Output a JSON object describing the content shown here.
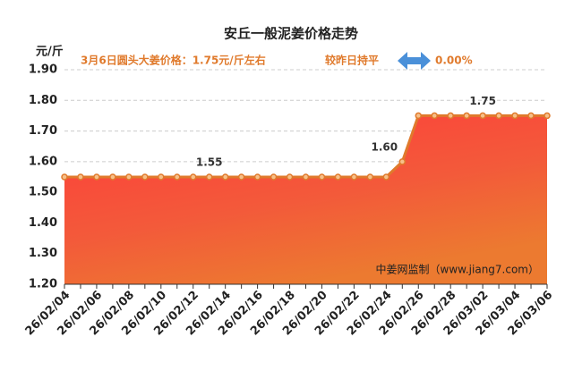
{
  "chart_data": {
    "type": "area",
    "title": "安丘一般泥姜价格走势",
    "y_label": "元/斤",
    "subtitle": "3月6日圆头大姜价格：1.75元/斤左右",
    "compare_text": "较昨日持平",
    "change": "0.00%",
    "watermark": "中姜网监制（www.jiang7.com）",
    "categories": [
      "26/02/04",
      null,
      "26/02/06",
      null,
      "26/02/08",
      null,
      "26/02/10",
      null,
      "26/02/12",
      null,
      "26/02/14",
      null,
      "26/02/16",
      null,
      "26/02/18",
      null,
      "26/02/20",
      null,
      "26/02/22",
      null,
      "26/02/24",
      null,
      "26/02/26",
      null,
      "26/02/28",
      null,
      "26/03/02",
      null,
      "26/03/04",
      null,
      "26/03/06"
    ],
    "values": [
      1.55,
      1.55,
      1.55,
      1.55,
      1.55,
      1.55,
      1.55,
      1.55,
      1.55,
      1.55,
      1.55,
      1.55,
      1.55,
      1.55,
      1.55,
      1.55,
      1.55,
      1.55,
      1.55,
      1.55,
      1.55,
      1.6,
      1.75,
      1.75,
      1.75,
      1.75,
      1.75,
      1.75,
      1.75,
      1.75,
      1.75
    ],
    "value_labels": [
      null,
      null,
      null,
      null,
      null,
      null,
      null,
      null,
      null,
      "1.55",
      null,
      null,
      null,
      null,
      null,
      null,
      null,
      null,
      null,
      null,
      null,
      "1.60",
      null,
      null,
      null,
      null,
      "1.75",
      null,
      null,
      null,
      null
    ],
    "color": "#e07a2c",
    "ylim": [
      1.2,
      1.9
    ],
    "yticks": [
      {
        "value": 1.2,
        "label": "1.20"
      },
      {
        "value": 1.3,
        "label": "1.30"
      },
      {
        "value": 1.4,
        "label": "1.40"
      },
      {
        "value": 1.5,
        "label": "1.50"
      },
      {
        "value": 1.6,
        "label": "1.60"
      },
      {
        "value": 1.7,
        "label": "1.70"
      },
      {
        "value": 1.8,
        "label": "1.80"
      },
      {
        "value": 1.9,
        "label": "1.90"
      }
    ],
    "grid": true
  }
}
